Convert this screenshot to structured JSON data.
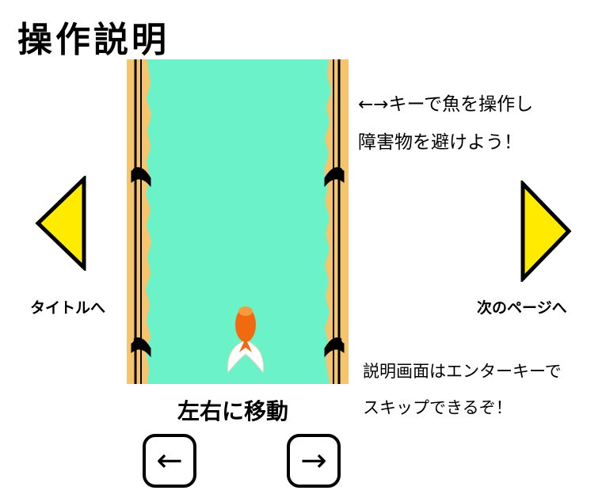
{
  "page": {
    "title": "操作説明"
  },
  "instructions": {
    "line1": "←→キーで魚を操作し",
    "line2": "障害物を避けよう！"
  },
  "skip_note": {
    "line1": "説明画面はエンターキーで",
    "line2": "スキップできるぞ！"
  },
  "nav": {
    "prev_label": "タイトルへ",
    "next_label": "次のページへ",
    "arrow_color": "#ffea00"
  },
  "controls": {
    "move_label": "左右に移動",
    "left_key": "←",
    "right_key": "→"
  },
  "field_colors": {
    "water": "#6cf2c8",
    "bank": "#f7c46e",
    "fish": "#f26a10"
  }
}
